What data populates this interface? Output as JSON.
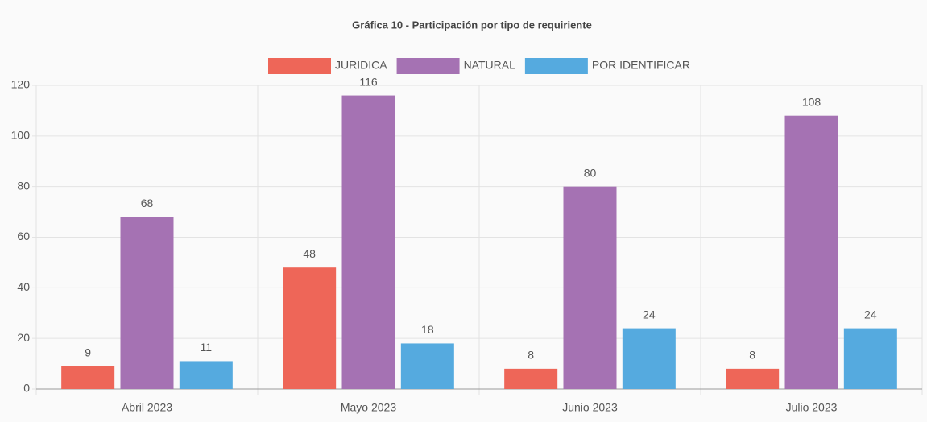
{
  "chart_data": {
    "type": "bar",
    "title": "Gráfica 10 - Participación por tipo de requiriente",
    "categories": [
      "Abril 2023",
      "Mayo 2023",
      "Junio 2023",
      "Julio 2023"
    ],
    "series": [
      {
        "name": "JURIDICA",
        "color": "#ee6658",
        "values": [
          9,
          48,
          8,
          8
        ]
      },
      {
        "name": "NATURAL",
        "color": "#a572b3",
        "values": [
          68,
          116,
          80,
          108
        ]
      },
      {
        "name": "POR IDENTIFICAR",
        "color": "#55aadf",
        "values": [
          11,
          18,
          24,
          24
        ]
      }
    ],
    "ylim": [
      0,
      120
    ],
    "yticks": [
      0,
      20,
      40,
      60,
      80,
      100,
      120
    ],
    "grid": true,
    "legend": "top"
  }
}
